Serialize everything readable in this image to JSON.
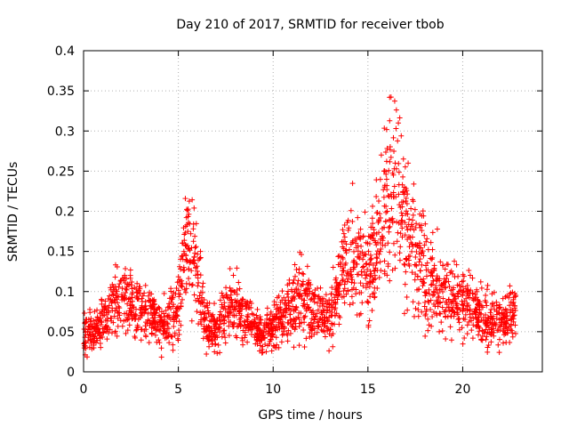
{
  "chart_data": {
    "type": "scatter",
    "title": "Day 210 of 2017, SRMTID for receiver tbob",
    "xlabel": "GPS time / hours",
    "ylabel": "SRMTID / TECUs",
    "xlim": [
      0,
      24.2
    ],
    "ylim": [
      0,
      0.4
    ],
    "x_ticks": [
      0,
      5,
      10,
      15,
      20
    ],
    "y_ticks": [
      0,
      0.05,
      0.1,
      0.15,
      0.2,
      0.25,
      0.3,
      0.35,
      0.4
    ],
    "x_tick_labels": [
      "0",
      "5",
      "10",
      "15",
      "20"
    ],
    "y_tick_labels": [
      "0",
      "0.05",
      "0.1",
      "0.15",
      "0.2",
      "0.25",
      "0.3",
      "0.35",
      "0.4"
    ],
    "grid": true,
    "marker": "+",
    "color": "#ff0000",
    "series": [
      {
        "name": "SRMTID",
        "description": "approximate trend (median envelope) of the scattered samples",
        "x": [
          0.0,
          0.5,
          1.0,
          1.5,
          2.0,
          2.5,
          3.0,
          3.5,
          4.0,
          4.5,
          5.0,
          5.5,
          6.0,
          6.5,
          7.0,
          7.5,
          8.0,
          8.5,
          9.0,
          9.5,
          10.0,
          10.5,
          11.0,
          11.5,
          12.0,
          12.5,
          13.0,
          13.5,
          14.0,
          14.5,
          15.0,
          15.5,
          16.0,
          16.5,
          17.0,
          17.5,
          18.0,
          18.5,
          19.0,
          19.5,
          20.0,
          20.5,
          21.0,
          21.5,
          22.0,
          22.5,
          22.8
        ],
        "y": [
          0.055,
          0.05,
          0.06,
          0.08,
          0.085,
          0.09,
          0.075,
          0.07,
          0.06,
          0.065,
          0.08,
          0.17,
          0.12,
          0.06,
          0.05,
          0.075,
          0.085,
          0.07,
          0.055,
          0.045,
          0.06,
          0.065,
          0.08,
          0.095,
          0.08,
          0.07,
          0.07,
          0.11,
          0.15,
          0.13,
          0.12,
          0.16,
          0.22,
          0.25,
          0.18,
          0.15,
          0.13,
          0.11,
          0.1,
          0.09,
          0.085,
          0.08,
          0.07,
          0.065,
          0.06,
          0.07,
          0.075
        ]
      }
    ]
  }
}
